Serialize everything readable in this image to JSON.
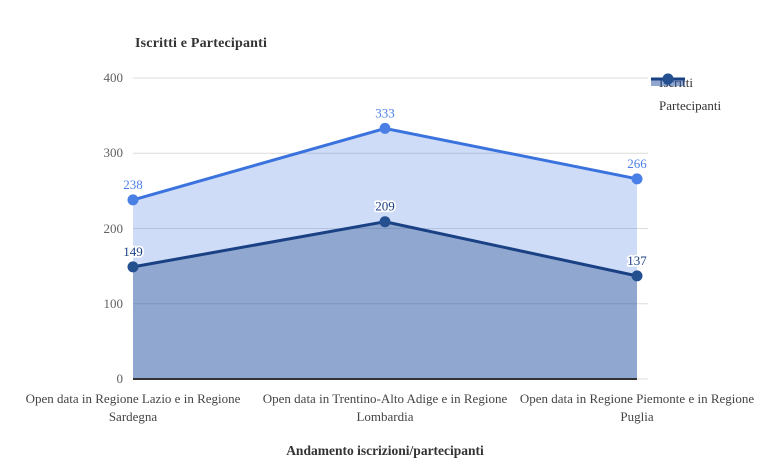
{
  "chart_data": {
    "type": "area",
    "title": "Iscritti e Partecipanti",
    "xlabel": "Andamento iscrizioni/partecipanti",
    "ylabel": "",
    "categories": [
      "Open data in Regione Lazio e in Regione Sardegna",
      "Open data in Trentino-Alto Adige e in Regione Lombardia",
      "Open data in Regione Piemonte e in Regione Puglia"
    ],
    "series": [
      {
        "name": "Iscritti",
        "values": [
          238,
          333,
          266
        ],
        "line_color": "#3b73de",
        "point_color": "#4a80e6",
        "label_color": "#4d80e6",
        "fill_color": "rgba(61,115,222,0.25)"
      },
      {
        "name": "Partecipanti",
        "values": [
          149,
          209,
          137
        ],
        "line_color": "#1b4185",
        "point_color": "#24508f",
        "label_color": "#1b4185",
        "fill_color": "rgba(27,65,133,0.34)"
      }
    ],
    "ylim": [
      0,
      400
    ],
    "yticks": [
      0,
      100,
      200,
      300,
      400
    ],
    "grid": true,
    "legend_position": "top-right"
  },
  "colors": {
    "background": "#ffffff",
    "grid": "#dcdcdc",
    "baseline": "#333333",
    "tick_label": "#616161",
    "category_label": "#444444",
    "title": "#333333",
    "legend_label": "#333333"
  }
}
